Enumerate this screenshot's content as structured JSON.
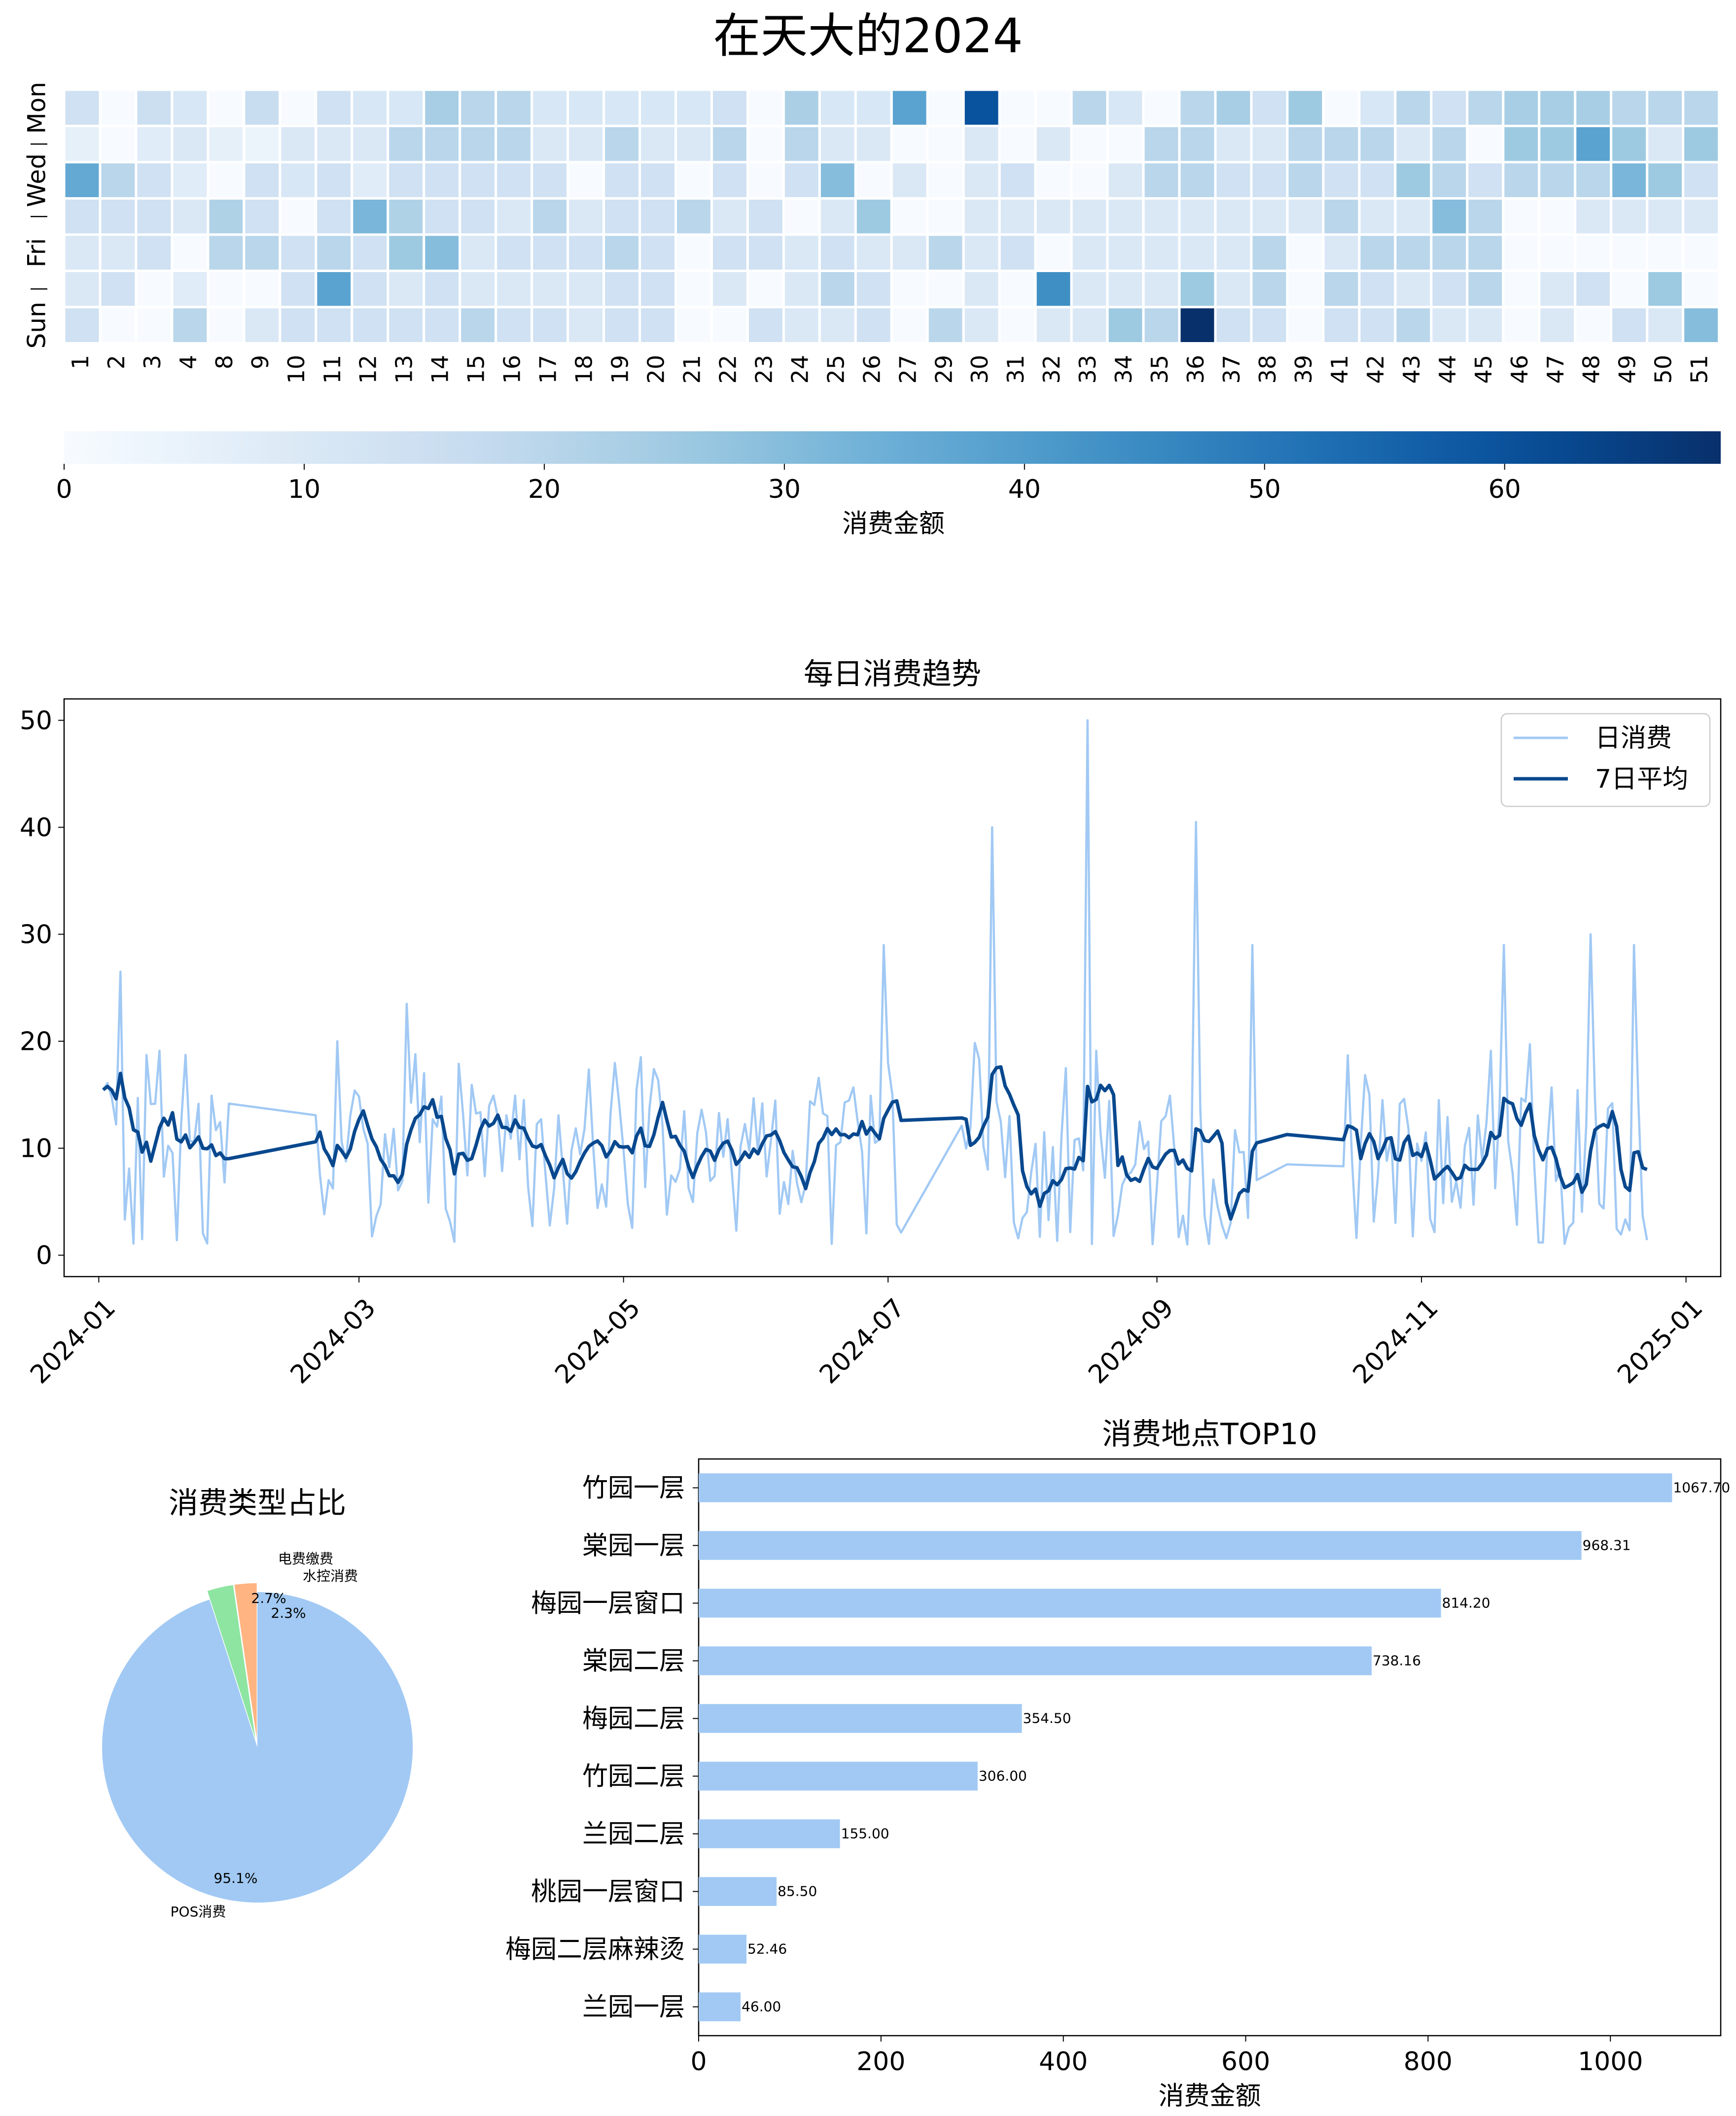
{
  "title": "在天大的2024",
  "heatmap": {
    "weeks": [
      "1",
      "2",
      "3",
      "4",
      "8",
      "9",
      "10",
      "11",
      "12",
      "13",
      "14",
      "15",
      "16",
      "17",
      "18",
      "19",
      "20",
      "21",
      "22",
      "23",
      "24",
      "25",
      "26",
      "27",
      "29",
      "30",
      "31",
      "32",
      "33",
      "34",
      "35",
      "36",
      "37",
      "38",
      "39",
      "41",
      "42",
      "43",
      "44",
      "45",
      "46",
      "47",
      "48",
      "49",
      "50",
      "51"
    ],
    "days": [
      "Mon",
      "",
      "Wed",
      "",
      "Fri",
      "",
      "Sun"
    ],
    "colorbar_label": "消费金额",
    "colorbar_ticks": [
      0,
      10,
      20,
      30,
      40,
      50,
      60
    ],
    "vmin": 0,
    "vmax": 69,
    "colormap": "Blues",
    "values": [
      [
        14,
        0,
        15,
        11,
        0,
        16,
        0,
        14,
        11,
        11,
        24,
        20,
        20,
        11,
        11,
        11,
        11,
        11,
        14,
        0,
        23,
        11,
        11,
        38,
        0,
        60,
        0,
        0,
        20,
        11,
        0,
        20,
        24,
        14,
        26,
        0,
        11,
        20,
        14,
        20,
        24,
        24,
        24,
        20,
        20,
        20
      ],
      [
        6,
        0,
        8,
        10,
        6,
        4,
        10,
        10,
        10,
        20,
        20,
        20,
        20,
        10,
        10,
        20,
        10,
        10,
        20,
        0,
        20,
        10,
        10,
        0,
        0,
        10,
        0,
        10,
        0,
        0,
        20,
        20,
        10,
        10,
        20,
        20,
        20,
        10,
        20,
        0,
        26,
        26,
        38,
        26,
        10,
        26
      ],
      [
        36,
        20,
        14,
        8,
        0,
        14,
        11,
        14,
        8,
        14,
        14,
        14,
        14,
        14,
        0,
        14,
        14,
        0,
        14,
        0,
        14,
        30,
        0,
        10,
        0,
        10,
        14,
        0,
        0,
        10,
        20,
        20,
        14,
        14,
        20,
        14,
        14,
        26,
        20,
        14,
        20,
        20,
        20,
        32,
        26,
        14
      ],
      [
        14,
        14,
        14,
        10,
        22,
        14,
        0,
        14,
        32,
        22,
        14,
        14,
        10,
        20,
        10,
        14,
        14,
        20,
        10,
        14,
        0,
        10,
        26,
        0,
        0,
        10,
        10,
        10,
        10,
        10,
        10,
        10,
        10,
        10,
        10,
        20,
        10,
        10,
        30,
        20,
        0,
        0,
        10,
        10,
        10,
        10
      ],
      [
        10,
        10,
        14,
        0,
        20,
        20,
        14,
        20,
        14,
        26,
        30,
        10,
        14,
        14,
        14,
        20,
        14,
        0,
        14,
        14,
        10,
        14,
        10,
        10,
        20,
        10,
        14,
        0,
        10,
        10,
        10,
        10,
        10,
        20,
        0,
        10,
        20,
        20,
        20,
        20,
        0,
        0,
        0,
        0,
        0,
        0
      ],
      [
        10,
        14,
        0,
        8,
        0,
        0,
        14,
        38,
        14,
        10,
        14,
        10,
        10,
        10,
        10,
        14,
        14,
        0,
        10,
        0,
        10,
        20,
        14,
        0,
        0,
        10,
        0,
        44,
        10,
        10,
        10,
        26,
        10,
        20,
        0,
        20,
        14,
        10,
        14,
        20,
        0,
        10,
        14,
        0,
        26,
        0
      ],
      [
        14,
        0,
        0,
        20,
        0,
        10,
        14,
        14,
        14,
        14,
        14,
        20,
        14,
        14,
        10,
        14,
        14,
        0,
        0,
        14,
        10,
        10,
        14,
        0,
        20,
        10,
        0,
        10,
        10,
        26,
        20,
        69,
        14,
        14,
        0,
        14,
        14,
        20,
        10,
        10,
        0,
        10,
        0,
        14,
        10,
        30
      ]
    ]
  },
  "line_chart": {
    "title": "每日消费趋势",
    "legend": [
      "日消费",
      "7日平均"
    ],
    "legend_position": "upper right",
    "y_ticks": [
      0,
      10,
      20,
      30,
      40,
      50
    ],
    "ylim": [
      -2,
      52
    ],
    "x_ticks": [
      "2024-01",
      "2024-03",
      "2024-05",
      "2024-07",
      "2024-09",
      "2024-11",
      "2025-01"
    ],
    "xlim": [
      "2023-12-24",
      "2025-01-09"
    ],
    "colors": {
      "daily": "#a1c9f4",
      "avg": "#08488e"
    }
  },
  "pie_chart": {
    "title": "消费类型占比",
    "labels": [
      "POS消费",
      "电费缴费",
      "水控消费"
    ],
    "percents": [
      "95.1%",
      "2.7%",
      "2.3%"
    ],
    "colors": [
      "#a1c9f4",
      "#8de5a1",
      "#ffb482"
    ]
  },
  "bar_chart": {
    "title": "消费地点TOP10",
    "xlabel": "消费金额",
    "x_ticks": [
      0,
      200,
      400,
      600,
      800,
      1000
    ],
    "xlim": [
      0,
      1121
    ],
    "labels": [
      "竹园一层",
      "棠园一层",
      "梅园一层窗口",
      "棠园二层",
      "梅园二层",
      "竹园二层",
      "兰园二层",
      "桃园一层窗口",
      "梅园二层麻辣烫",
      "兰园一层"
    ],
    "value_labels": [
      "1067.70",
      "968.31",
      "814.20",
      "738.16",
      "354.50",
      "306.00",
      "155.00",
      "85.50",
      "52.46",
      "46.00"
    ],
    "color": "#a1c9f4"
  },
  "chart_data": [
    {
      "type": "heatmap",
      "title": "在天大的2024",
      "x": [
        "1",
        "2",
        "3",
        "4",
        "8",
        "9",
        "10",
        "11",
        "12",
        "13",
        "14",
        "15",
        "16",
        "17",
        "18",
        "19",
        "20",
        "21",
        "22",
        "23",
        "24",
        "25",
        "26",
        "27",
        "29",
        "30",
        "31",
        "32",
        "33",
        "34",
        "35",
        "36",
        "37",
        "38",
        "39",
        "41",
        "42",
        "43",
        "44",
        "45",
        "46",
        "47",
        "48",
        "49",
        "50",
        "51"
      ],
      "y": [
        "Mon",
        "",
        "Wed",
        "",
        "Fri",
        "",
        "Sun"
      ],
      "colorbar_label": "消费金额",
      "vmin": 0,
      "vmax": 69
    },
    {
      "type": "line",
      "title": "每日消费趋势",
      "series": [
        {
          "name": "日消费",
          "sample_points": [
            [
              "2024-01-02",
              3
            ],
            [
              "2024-01-06",
              26.5
            ],
            [
              "2024-01-13",
              1
            ],
            [
              "2024-01-20",
              17.5
            ],
            [
              "2024-01-31",
              1.5
            ],
            [
              "2024-02-20",
              8
            ],
            [
              "2024-02-25",
              20
            ],
            [
              "2024-03-12",
              23.5
            ],
            [
              "2024-04-05",
              18
            ],
            [
              "2024-05-01",
              18.5
            ],
            [
              "2024-06-01",
              14
            ],
            [
              "2024-06-30",
              29
            ],
            [
              "2024-07-12",
              2
            ],
            [
              "2024-07-25",
              40
            ],
            [
              "2024-08-16",
              50
            ],
            [
              "2024-09-10",
              40.5
            ],
            [
              "2024-09-23",
              29
            ],
            [
              "2024-10-01",
              1
            ],
            [
              "2024-11-01",
              15
            ],
            [
              "2024-11-20",
              29
            ],
            [
              "2024-12-10",
              30
            ],
            [
              "2024-12-20",
              29
            ]
          ]
        },
        {
          "name": "7日平均",
          "sample_points": [
            [
              "2024-01-02",
              8
            ],
            [
              "2024-01-06",
              12.5
            ],
            [
              "2024-01-10",
              4
            ],
            [
              "2024-01-31",
              9.5
            ],
            [
              "2024-02-20",
              9
            ],
            [
              "2024-03-10",
              14
            ],
            [
              "2024-04-01",
              7
            ],
            [
              "2024-05-01",
              8
            ],
            [
              "2024-06-01",
              12
            ],
            [
              "2024-07-01",
              13.5
            ],
            [
              "2024-07-20",
              12
            ],
            [
              "2024-08-03",
              14.5
            ],
            [
              "2024-08-16",
              17
            ],
            [
              "2024-08-23",
              6
            ],
            [
              "2024-09-10",
              14.5
            ],
            [
              "2024-10-01",
              8
            ],
            [
              "2024-11-01",
              8.5
            ],
            [
              "2024-12-01",
              14.5
            ],
            [
              "2024-12-20",
              13
            ]
          ]
        }
      ],
      "ylim": [
        -2,
        52
      ]
    },
    {
      "type": "pie",
      "title": "消费类型占比",
      "labels": [
        "POS消费",
        "电费缴费",
        "水控消费"
      ],
      "values": [
        95.1,
        2.7,
        2.3
      ]
    },
    {
      "type": "bar",
      "orientation": "horizontal",
      "title": "消费地点TOP10",
      "categories": [
        "竹园一层",
        "棠园一层",
        "梅园一层窗口",
        "棠园二层",
        "梅园二层",
        "竹园二层",
        "兰园二层",
        "桃园一层窗口",
        "梅园二层麻辣烫",
        "兰园一层"
      ],
      "values": [
        1067.7,
        968.31,
        814.2,
        738.16,
        354.5,
        306.0,
        155.0,
        85.5,
        52.46,
        46.0
      ],
      "xlabel": "消费金额",
      "xlim": [
        0,
        1121
      ]
    }
  ]
}
